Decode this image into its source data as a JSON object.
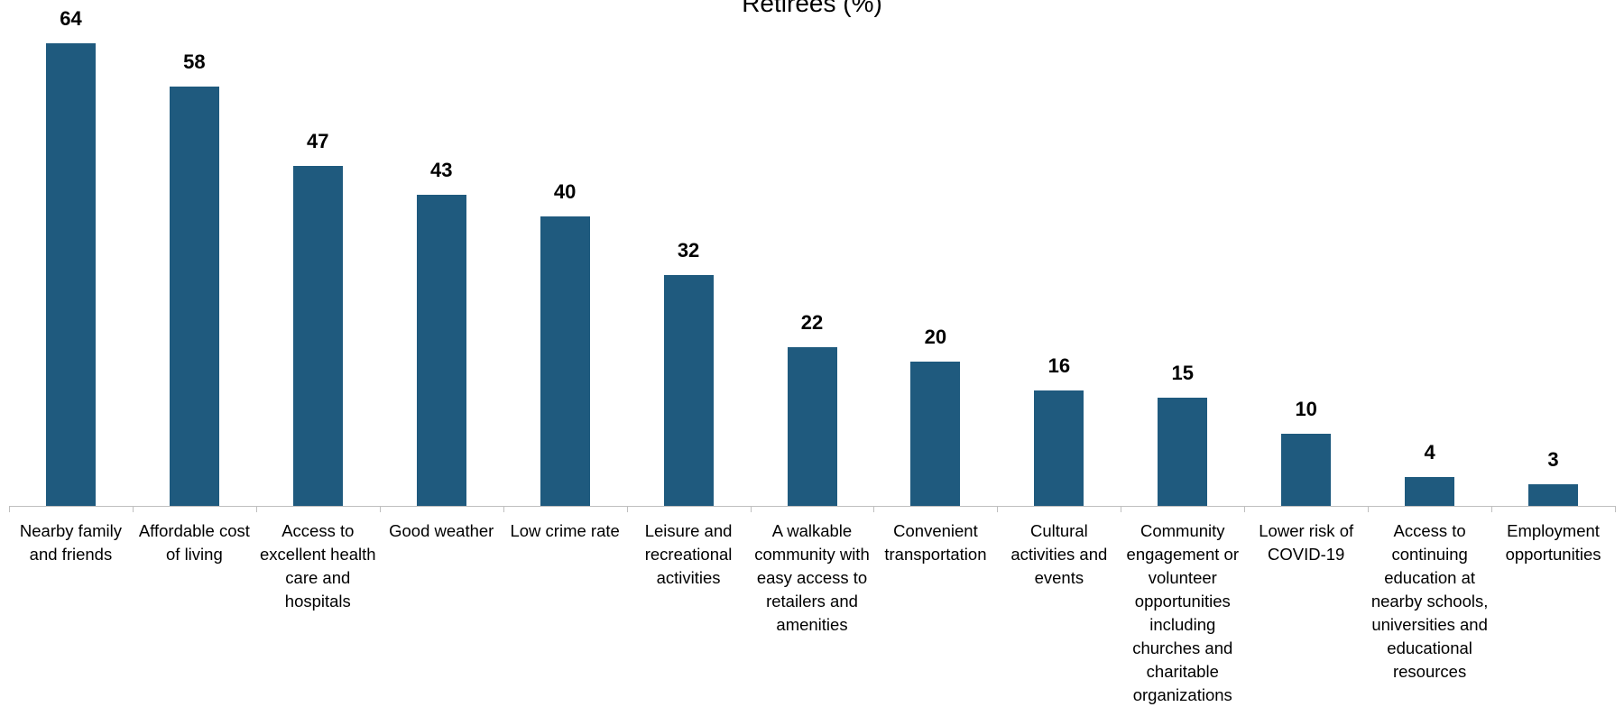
{
  "chart_data": {
    "type": "bar",
    "title": "Retirees (%)",
    "categories": [
      "Nearby family and friends",
      "Affordable cost of living",
      "Access to excellent health care and hospitals",
      "Good weather",
      "Low crime rate",
      "Leisure and recreational activities",
      "A walkable community with easy access to retailers and amenities",
      "Convenient transportation",
      "Cultural activities and events",
      "Community engagement or volunteer opportunities including churches and charitable organizations",
      "Lower risk of COVID-19",
      "Access to continuing education at nearby schools, universities and educational resources",
      "Employment opportunities"
    ],
    "values": [
      64,
      58,
      47,
      43,
      40,
      32,
      22,
      20,
      16,
      15,
      10,
      4,
      3
    ],
    "bar_color": "#1f5a7e",
    "ylim": [
      0,
      64
    ],
    "grid": false,
    "legend": "none"
  }
}
